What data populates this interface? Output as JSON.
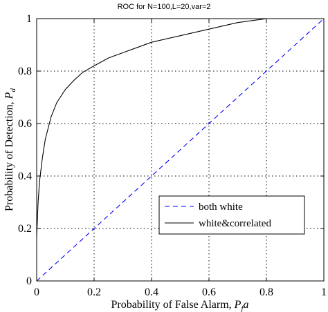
{
  "chart_data": {
    "type": "line",
    "title": "ROC for N=100,L=20,var=2",
    "xlabel": "Probability of False Alarm, ",
    "xlabel_math": "P",
    "xlabel_sub": "f",
    "xlabel_tail": "a",
    "ylabel": "Probability of Detection, ",
    "ylabel_math": "P",
    "ylabel_sub": "d",
    "xlim": [
      0,
      1
    ],
    "ylim": [
      0,
      1
    ],
    "xticks": [
      0,
      0.2,
      0.4,
      0.6,
      0.8,
      1
    ],
    "yticks": [
      0,
      0.2,
      0.4,
      0.6,
      0.8,
      1
    ],
    "xtick_labels": [
      "0",
      "0.2",
      "0.4",
      "0.6",
      "0.8",
      "1"
    ],
    "ytick_labels": [
      "0",
      "0.2",
      "0.4",
      "0.6",
      "0.8",
      "1"
    ],
    "grid": true,
    "legend_position": "lower-right",
    "series": [
      {
        "name": "both white",
        "color": "#0000ff",
        "style": "dashed",
        "x": [
          0,
          1
        ],
        "y": [
          0,
          1
        ]
      },
      {
        "name": "white&correlated",
        "color": "#000000",
        "style": "solid",
        "x": [
          0,
          0.002,
          0.005,
          0.01,
          0.02,
          0.03,
          0.05,
          0.07,
          0.1,
          0.13,
          0.16,
          0.2,
          0.25,
          0.3,
          0.35,
          0.4,
          0.5,
          0.6,
          0.7,
          0.8
        ],
        "y": [
          0.17,
          0.22,
          0.3,
          0.38,
          0.47,
          0.54,
          0.625,
          0.68,
          0.73,
          0.765,
          0.795,
          0.82,
          0.85,
          0.87,
          0.89,
          0.91,
          0.935,
          0.96,
          0.985,
          1.0
        ]
      }
    ]
  }
}
